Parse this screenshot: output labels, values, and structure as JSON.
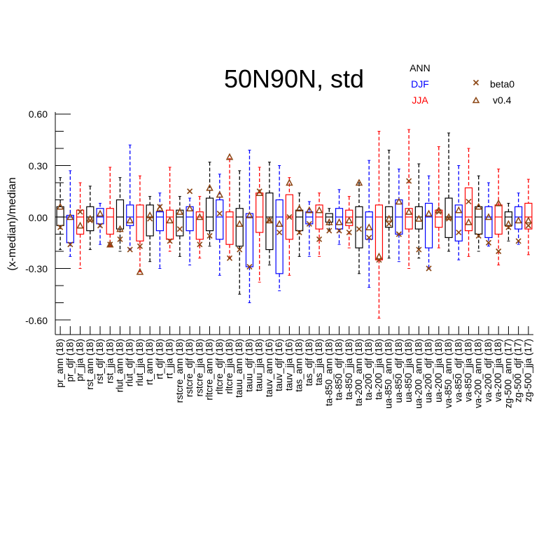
{
  "chart_data": {
    "type": "box",
    "title": "50N90N, std",
    "ylabel": "(x-median)/median",
    "ylim": [
      -0.7,
      0.65
    ],
    "yticks": [
      "0.60",
      "0.30",
      "0.00",
      "-0.30",
      "-0.60"
    ],
    "ytick_values": [
      0.6,
      0.3,
      0.0,
      -0.3,
      -0.6
    ],
    "season_legend": [
      {
        "label": "ANN",
        "color": "#000000"
      },
      {
        "label": "DJF",
        "color": "#0000ff"
      },
      {
        "label": "JJA",
        "color": "#ff0000"
      }
    ],
    "marker_legend": [
      {
        "label": "beta0",
        "marker": "x",
        "color": "#8B4513"
      },
      {
        "label": "v0.4",
        "marker": "triangle",
        "color": "#8B4513"
      }
    ],
    "categories": [
      "pr_ann (18)",
      "pr_djf (18)",
      "pr_jja (18)",
      "rst_ann (18)",
      "rst_djf (18)",
      "rst_jja (18)",
      "rlut_ann (18)",
      "rlut_djf (18)",
      "rlut_jja (18)",
      "rt_ann (18)",
      "rt_djf (18)",
      "rt_jja (18)",
      "rstcre_ann (18)",
      "rstcre_djf (18)",
      "rstcre_jja (18)",
      "rltcre_ann (18)",
      "rltcre_djf (18)",
      "rltcre_jja (18)",
      "tauu_ann (18)",
      "tauu_djf (18)",
      "tauu_jja (18)",
      "tauv_ann (16)",
      "tauv_djf (16)",
      "tauv_jja (16)",
      "tas_ann (18)",
      "tas_djf (18)",
      "tas_jja (18)",
      "ta-850_ann (18)",
      "ta-850_djf (18)",
      "ta-850_jja (18)",
      "ta-200_ann (18)",
      "ta-200_djf (18)",
      "ta-200_jja (18)",
      "ua-850_ann (18)",
      "ua-850_djf (18)",
      "ua-850_jja (18)",
      "ua-200_ann (18)",
      "ua-200_djf (18)",
      "ua-200_jja (18)",
      "va-850_ann (18)",
      "va-850_djf (18)",
      "va-850_jja (18)",
      "va-200_ann (18)",
      "va-200_djf (18)",
      "va-200_jja (18)",
      "zg-500_ann (17)",
      "zg-500_djf (17)",
      "zg-500_jja (17)"
    ],
    "boxes": [
      {
        "wlo": -0.19,
        "q1": -0.05,
        "med": 0.0,
        "q3": 0.06,
        "whi": 0.23
      },
      {
        "wlo": -0.23,
        "q1": -0.15,
        "med": 0.0,
        "q3": 0.01,
        "whi": 0.27
      },
      {
        "wlo": -0.3,
        "q1": -0.1,
        "med": 0.0,
        "q3": 0.04,
        "whi": 0.2
      },
      {
        "wlo": -0.19,
        "q1": -0.08,
        "med": 0.0,
        "q3": 0.06,
        "whi": 0.18
      },
      {
        "wlo": -0.16,
        "q1": -0.04,
        "med": 0.0,
        "q3": 0.05,
        "whi": 0.08
      },
      {
        "wlo": -0.17,
        "q1": -0.1,
        "med": 0.0,
        "q3": 0.05,
        "whi": 0.29
      },
      {
        "wlo": -0.2,
        "q1": -0.07,
        "med": 0.0,
        "q3": 0.1,
        "whi": 0.23
      },
      {
        "wlo": -0.19,
        "q1": -0.05,
        "med": 0.0,
        "q3": 0.07,
        "whi": 0.42
      },
      {
        "wlo": -0.32,
        "q1": -0.14,
        "med": 0.0,
        "q3": 0.07,
        "whi": 0.24
      },
      {
        "wlo": -0.26,
        "q1": -0.11,
        "med": 0.0,
        "q3": 0.07,
        "whi": 0.12
      },
      {
        "wlo": -0.3,
        "q1": -0.08,
        "med": 0.0,
        "q3": 0.03,
        "whi": 0.14
      },
      {
        "wlo": -0.2,
        "q1": -0.13,
        "med": 0.0,
        "q3": 0.04,
        "whi": 0.29
      },
      {
        "wlo": -0.23,
        "q1": -0.11,
        "med": 0.0,
        "q3": 0.04,
        "whi": 0.12
      },
      {
        "wlo": -0.28,
        "q1": -0.08,
        "med": 0.0,
        "q3": 0.06,
        "whi": 0.11
      },
      {
        "wlo": -0.24,
        "q1": -0.13,
        "med": 0.0,
        "q3": 0.03,
        "whi": 0.12
      },
      {
        "wlo": -0.17,
        "q1": -0.08,
        "med": 0.0,
        "q3": 0.11,
        "whi": 0.32
      },
      {
        "wlo": -0.34,
        "q1": -0.13,
        "med": 0.0,
        "q3": 0.1,
        "whi": 0.25
      },
      {
        "wlo": -0.24,
        "q1": -0.16,
        "med": 0.0,
        "q3": 0.03,
        "whi": 0.34
      },
      {
        "wlo": -0.45,
        "q1": -0.17,
        "med": 0.0,
        "q3": 0.05,
        "whi": 0.27
      },
      {
        "wlo": -0.5,
        "q1": -0.29,
        "med": 0.0,
        "q3": 0.02,
        "whi": 0.39
      },
      {
        "wlo": -0.38,
        "q1": -0.09,
        "med": 0.0,
        "q3": 0.14,
        "whi": 0.29
      },
      {
        "wlo": -0.28,
        "q1": -0.19,
        "med": 0.0,
        "q3": 0.14,
        "whi": 0.32
      },
      {
        "wlo": -0.43,
        "q1": -0.33,
        "med": 0.0,
        "q3": 0.1,
        "whi": 0.3
      },
      {
        "wlo": -0.34,
        "q1": -0.13,
        "med": 0.0,
        "q3": 0.13,
        "whi": 0.23
      },
      {
        "wlo": -0.23,
        "q1": -0.08,
        "med": 0.0,
        "q3": 0.04,
        "whi": 0.14
      },
      {
        "wlo": -0.23,
        "q1": -0.04,
        "med": 0.0,
        "q3": 0.03,
        "whi": 0.09
      },
      {
        "wlo": -0.23,
        "q1": -0.07,
        "med": 0.0,
        "q3": 0.07,
        "whi": 0.14
      },
      {
        "wlo": -0.08,
        "q1": -0.03,
        "med": 0.0,
        "q3": 0.02,
        "whi": 0.05
      },
      {
        "wlo": -0.16,
        "q1": -0.07,
        "med": 0.0,
        "q3": 0.05,
        "whi": 0.16
      },
      {
        "wlo": -0.18,
        "q1": -0.05,
        "med": 0.0,
        "q3": 0.04,
        "whi": 0.12
      },
      {
        "wlo": -0.33,
        "q1": -0.18,
        "med": 0.0,
        "q3": 0.06,
        "whi": 0.2
      },
      {
        "wlo": -0.41,
        "q1": -0.13,
        "med": 0.0,
        "q3": 0.03,
        "whi": 0.33
      },
      {
        "wlo": -0.59,
        "q1": -0.25,
        "med": 0.0,
        "q3": 0.07,
        "whi": 0.5
      },
      {
        "wlo": -0.24,
        "q1": -0.06,
        "med": 0.0,
        "q3": 0.06,
        "whi": 0.39
      },
      {
        "wlo": -0.26,
        "q1": -0.1,
        "med": 0.0,
        "q3": 0.1,
        "whi": 0.28
      },
      {
        "wlo": -0.3,
        "q1": -0.07,
        "med": 0.0,
        "q3": 0.05,
        "whi": 0.51
      },
      {
        "wlo": -0.24,
        "q1": -0.07,
        "med": 0.0,
        "q3": 0.06,
        "whi": 0.31
      },
      {
        "wlo": -0.3,
        "q1": -0.18,
        "med": 0.0,
        "q3": 0.08,
        "whi": 0.24
      },
      {
        "wlo": -0.18,
        "q1": -0.06,
        "med": 0.0,
        "q3": 0.04,
        "whi": 0.41
      },
      {
        "wlo": -0.2,
        "q1": -0.12,
        "med": 0.0,
        "q3": 0.11,
        "whi": 0.49
      },
      {
        "wlo": -0.25,
        "q1": -0.14,
        "med": 0.0,
        "q3": 0.07,
        "whi": 0.3
      },
      {
        "wlo": -0.23,
        "q1": -0.08,
        "med": 0.0,
        "q3": 0.17,
        "whi": 0.4
      },
      {
        "wlo": -0.2,
        "q1": -0.1,
        "med": 0.0,
        "q3": 0.06,
        "whi": 0.24
      },
      {
        "wlo": -0.17,
        "q1": -0.12,
        "med": 0.0,
        "q3": 0.06,
        "whi": 0.2
      },
      {
        "wlo": -0.28,
        "q1": -0.1,
        "med": 0.0,
        "q3": 0.07,
        "whi": 0.28
      },
      {
        "wlo": -0.14,
        "q1": -0.05,
        "med": 0.0,
        "q3": 0.03,
        "whi": 0.08
      },
      {
        "wlo": -0.16,
        "q1": -0.07,
        "med": 0.0,
        "q3": 0.06,
        "whi": 0.14
      },
      {
        "wlo": -0.22,
        "q1": -0.07,
        "med": 0.0,
        "q3": 0.08,
        "whi": 0.22
      }
    ],
    "markers_beta0": [
      -0.06,
      -0.16,
      0.03,
      -0.02,
      -0.05,
      -0.16,
      -0.13,
      -0.19,
      -0.17,
      -0.01,
      0.06,
      -0.14,
      -0.07,
      0.15,
      -0.16,
      -0.11,
      0.02,
      -0.24,
      -0.19,
      -0.29,
      0.15,
      -0.02,
      -0.09,
      0.0,
      -0.09,
      -0.04,
      -0.13,
      -0.08,
      -0.08,
      -0.09,
      -0.07,
      -0.12,
      -0.25,
      -0.04,
      -0.1,
      0.21,
      -0.19,
      -0.3,
      0.03,
      -0.01,
      -0.09,
      0.09,
      -0.11,
      -0.15,
      -0.2,
      -0.06,
      -0.14,
      -0.05
    ],
    "markers_v04": [
      0.06,
      0.0,
      -0.05,
      -0.01,
      0.02,
      -0.16,
      -0.07,
      -0.02,
      -0.32,
      0.01,
      0.05,
      -0.02,
      0.03,
      0.05,
      0.0,
      0.17,
      0.13,
      0.35,
      -0.04,
      0.01,
      0.14,
      -0.02,
      -0.04,
      0.2,
      0.05,
      0.04,
      0.04,
      -0.03,
      -0.03,
      -0.02,
      0.2,
      -0.06,
      -0.23,
      -0.01,
      0.09,
      0.03,
      -0.01,
      0.02,
      0.04,
      0.0,
      0.04,
      -0.03,
      0.06,
      0.0,
      0.08,
      -0.04,
      -0.02,
      -0.02
    ]
  }
}
